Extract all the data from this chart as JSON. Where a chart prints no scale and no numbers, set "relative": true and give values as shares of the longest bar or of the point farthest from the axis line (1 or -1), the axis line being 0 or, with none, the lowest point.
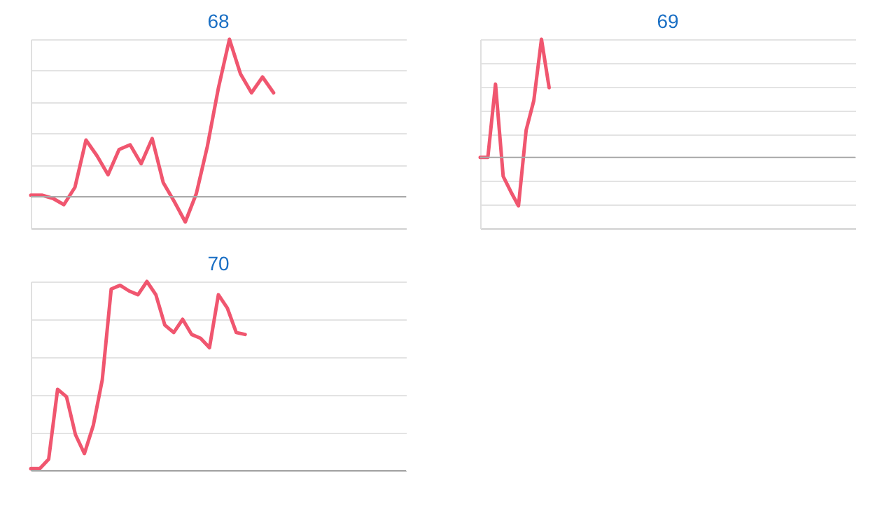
{
  "chart_data": [
    {
      "type": "line",
      "title": "68",
      "relative": true,
      "grid": "y",
      "categories": [
        null,
        null,
        null,
        null,
        null,
        null,
        null,
        null,
        null,
        null,
        null,
        null,
        null,
        null,
        null,
        null,
        null,
        null,
        null,
        null,
        null,
        null,
        null,
        null,
        null,
        null,
        null,
        null,
        null,
        null,
        null,
        null,
        null,
        null,
        null
      ],
      "series": [
        {
          "color": "#f0566f",
          "values": [
            0.01,
            0.01,
            -0.01,
            -0.05,
            0.06,
            0.36,
            0.26,
            0.14,
            0.3,
            0.33,
            0.21,
            0.37,
            0.09,
            -0.03,
            -0.16,
            0.02,
            0.32,
            0.69,
            1.0,
            0.78,
            0.66,
            0.76,
            0.66,
            null,
            null,
            null,
            null,
            null,
            null,
            null,
            null,
            null,
            null,
            null,
            null
          ]
        }
      ]
    },
    {
      "type": "line",
      "title": "69",
      "relative": true,
      "grid": "y",
      "categories": [
        null,
        null,
        null,
        null,
        null,
        null,
        null,
        null,
        null,
        null,
        null,
        null,
        null,
        null,
        null,
        null,
        null,
        null,
        null,
        null,
        null,
        null,
        null,
        null,
        null,
        null,
        null,
        null,
        null,
        null,
        null,
        null,
        null,
        null,
        null,
        null,
        null,
        null,
        null,
        null,
        null,
        null,
        null,
        null,
        null,
        null,
        null,
        null,
        null,
        null
      ],
      "series": [
        {
          "color": "#f0566f",
          "values": [
            0,
            0,
            0.62,
            -0.16,
            -0.29,
            -0.41,
            0.23,
            0.48,
            1.0,
            0.59,
            null,
            null,
            null,
            null,
            null,
            null,
            null,
            null,
            null,
            null,
            null,
            null,
            null,
            null,
            null,
            null,
            null,
            null,
            null,
            null,
            null,
            null,
            null,
            null,
            null,
            null,
            null,
            null,
            null,
            null,
            null,
            null,
            null,
            null,
            null,
            null,
            null,
            null,
            null,
            null
          ]
        }
      ]
    },
    {
      "type": "line",
      "title": "70",
      "relative": true,
      "grid": "y",
      "categories": [
        null,
        null,
        null,
        null,
        null,
        null,
        null,
        null,
        null,
        null,
        null,
        null,
        null,
        null,
        null,
        null,
        null,
        null,
        null,
        null,
        null,
        null,
        null,
        null,
        null,
        null,
        null,
        null,
        null,
        null,
        null,
        null,
        null,
        null,
        null,
        null,
        null,
        null,
        null,
        null,
        null,
        null,
        null
      ],
      "series": [
        {
          "color": "#f0566f",
          "values": [
            0.01,
            0.01,
            0.06,
            0.43,
            0.39,
            0.19,
            0.09,
            0.24,
            0.48,
            0.96,
            0.98,
            0.95,
            0.93,
            1.0,
            0.93,
            0.77,
            0.73,
            0.8,
            0.72,
            0.7,
            0.65,
            0.93,
            0.86,
            0.73,
            0.72,
            null,
            null,
            null,
            null,
            null,
            null,
            null,
            null,
            null,
            null,
            null,
            null,
            null,
            null,
            null,
            null,
            null,
            null
          ]
        }
      ]
    }
  ]
}
